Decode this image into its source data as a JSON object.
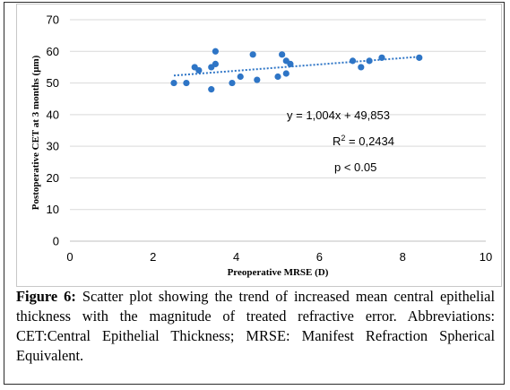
{
  "chart_data": {
    "type": "scatter",
    "xlabel": "Preoperative MRSE (D)",
    "ylabel": "Postoperative CET at 3 months (μm)",
    "xlim": [
      0,
      10
    ],
    "ylim": [
      0,
      70
    ],
    "x_ticks": [
      "0",
      "2",
      "4",
      "6",
      "8",
      "10"
    ],
    "y_ticks": [
      "0",
      "10",
      "20",
      "30",
      "40",
      "50",
      "60",
      "70"
    ],
    "grid": "horizontal",
    "marker_color": "#2e75c6",
    "trendline_color": "#2e75c6",
    "points": [
      {
        "x": 2.5,
        "y": 50
      },
      {
        "x": 2.8,
        "y": 50
      },
      {
        "x": 3.0,
        "y": 55
      },
      {
        "x": 3.1,
        "y": 54
      },
      {
        "x": 3.4,
        "y": 55
      },
      {
        "x": 3.5,
        "y": 56
      },
      {
        "x": 3.5,
        "y": 60
      },
      {
        "x": 3.4,
        "y": 48
      },
      {
        "x": 3.9,
        "y": 50
      },
      {
        "x": 4.1,
        "y": 52
      },
      {
        "x": 4.4,
        "y": 59
      },
      {
        "x": 4.5,
        "y": 51
      },
      {
        "x": 5.0,
        "y": 52
      },
      {
        "x": 5.1,
        "y": 59
      },
      {
        "x": 5.2,
        "y": 57
      },
      {
        "x": 5.2,
        "y": 53
      },
      {
        "x": 5.3,
        "y": 56
      },
      {
        "x": 6.8,
        "y": 57
      },
      {
        "x": 7.0,
        "y": 55
      },
      {
        "x": 7.2,
        "y": 57
      },
      {
        "x": 7.5,
        "y": 58
      },
      {
        "x": 8.4,
        "y": 58
      }
    ],
    "trendline": {
      "slope": 1.004,
      "intercept": 49.853,
      "x_range": [
        2.5,
        8.4
      ]
    },
    "annotations": {
      "equation": "y = 1,004x + 49,853",
      "r2_prefix": "R",
      "r2_sup": "2",
      "r2_suffix": " = 0,2434",
      "p_value": "p < 0.05"
    }
  },
  "caption": {
    "label": "Figure 6:",
    "text": " Scatter plot showing the trend of increased mean central epithelial thickness with the magnitude of treated refractive error. Abbreviations: CET:Central Epithelial Thickness; MRSE: Manifest Refraction Spherical Equivalent."
  }
}
